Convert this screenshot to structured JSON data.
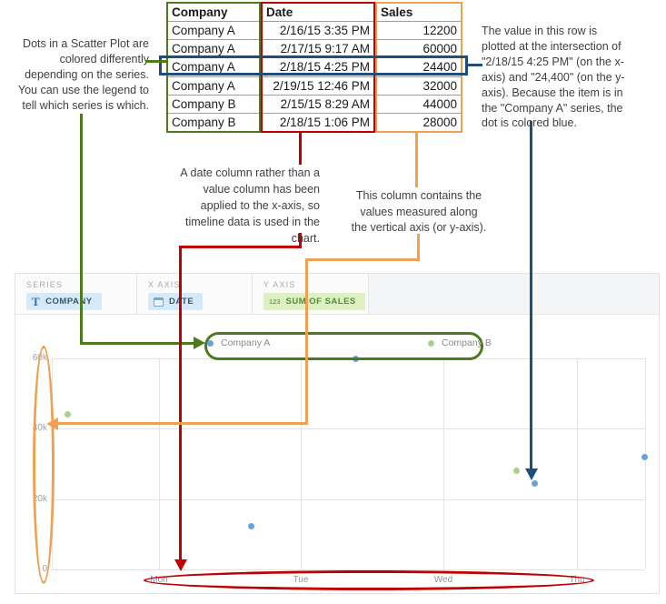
{
  "annotations": {
    "legend_note": "Dots in a Scatter Plot are\ncolored differently\ndepending on the series.\nYou can use the legend to\ntell which series is which.",
    "row_note": "The value in this row is\nplotted at the intersection of\n\"2/18/15 4:25 PM\" (on the x-\naxis) and \"24,400\" (on the y-\naxis). Because the item is in\nthe \"Company A\" series, the\ndot is colored blue.",
    "date_note": "A date column rather than a\nvalue column has been\napplied to the x-axis, so\ntimeline data is used in the\nchart.",
    "values_note": "This column contains the\nvalues measured along\nthe vertical axis (or y-axis).",
    "colors": {
      "series_green": "#4e7a1e",
      "date_red": "#c00000",
      "values_orange": "#f0a053",
      "row_blue": "#1f4e79"
    }
  },
  "table": {
    "headers": [
      "Company",
      "Date",
      "Sales"
    ],
    "rows": [
      [
        "Company A",
        "2/16/15 3:35 PM",
        "12200"
      ],
      [
        "Company A",
        "2/17/15 9:17 AM",
        "60000"
      ],
      [
        "Company A",
        "2/18/15 4:25 PM",
        "24400"
      ],
      [
        "Company A",
        "2/19/15 12:46 PM",
        "32000"
      ],
      [
        "Company B",
        "2/15/15 8:29 AM",
        "44000"
      ],
      [
        "Company B",
        "2/18/15 1:06 PM",
        "28000"
      ]
    ],
    "highlighted_row_index": 2
  },
  "builder": {
    "sections": [
      {
        "label": "SERIES",
        "field": "COMPANY",
        "icon": "text-type-icon",
        "pill_color": "#d6e9f8"
      },
      {
        "label": "X AXIS",
        "field": "DATE",
        "icon": "calendar-icon",
        "pill_color": "#d6e9f8"
      },
      {
        "label": "Y AXIS",
        "field": "SUM OF SALES",
        "icon": "number-123-icon",
        "pill_color": "#def0c2"
      }
    ],
    "y_axis_icon_text": "123",
    "series_icon_text": "T"
  },
  "chart_data": {
    "type": "scatter",
    "title": "",
    "xlabel": "",
    "ylabel": "",
    "x_ticks": [
      "Mon",
      "Tue",
      "Wed",
      "Thu"
    ],
    "y_ticks": [
      "60k",
      "40k",
      "20k",
      "0"
    ],
    "y_tick_values": [
      60000,
      40000,
      20000,
      0
    ],
    "y_range": [
      0,
      60000
    ],
    "grid": true,
    "legend_position": "top",
    "series": [
      {
        "name": "Company A",
        "color": "#6aa2d8",
        "points": [
          {
            "date": "2/16/15 3:35 PM",
            "value": 12200
          },
          {
            "date": "2/17/15 9:17 AM",
            "value": 60000
          },
          {
            "date": "2/18/15 4:25 PM",
            "value": 24400
          },
          {
            "date": "2/19/15 12:46 PM",
            "value": 32000
          }
        ]
      },
      {
        "name": "Company B",
        "color": "#a9d18e",
        "points": [
          {
            "date": "2/15/15 8:29 AM",
            "value": 44000
          },
          {
            "date": "2/18/15 1:06 PM",
            "value": 28000
          }
        ]
      }
    ]
  }
}
